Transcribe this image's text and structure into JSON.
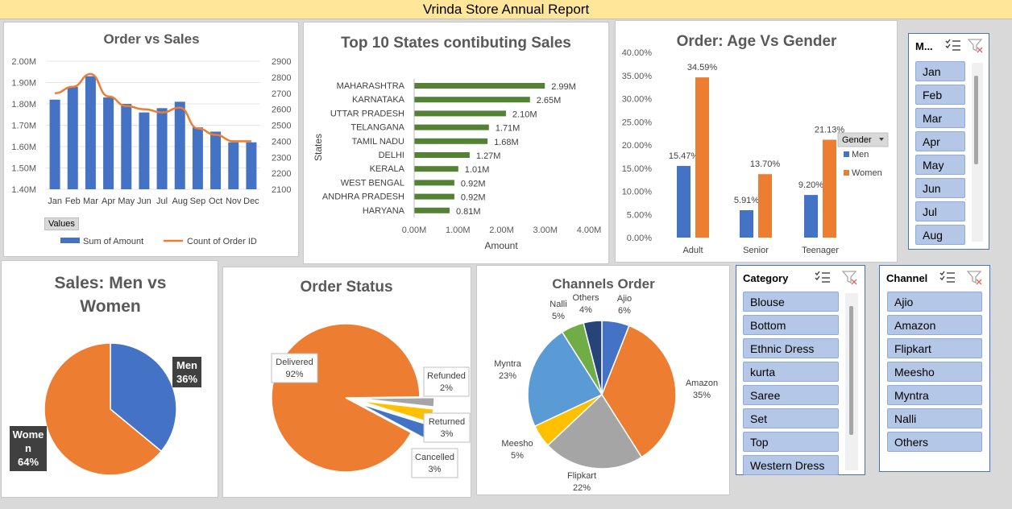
{
  "report_title": "Vrinda Store Annual Report",
  "order_vs_sales": {
    "title": "Order vs Sales",
    "values_button": "Values",
    "legend": [
      "Sum of Amount",
      "Count of Order ID"
    ],
    "chart_data": {
      "type": "bar",
      "categories": [
        "Jan",
        "Feb",
        "Mar",
        "Apr",
        "May",
        "Jun",
        "Jul",
        "Aug",
        "Sep",
        "Oct",
        "Nov",
        "Dec"
      ],
      "series": [
        {
          "name": "Sum of Amount",
          "type": "bar",
          "axis": "left",
          "values": [
            1.82,
            1.88,
            1.93,
            1.83,
            1.8,
            1.76,
            1.78,
            1.81,
            1.69,
            1.67,
            1.62,
            1.62
          ]
        },
        {
          "name": "Count of Order ID",
          "type": "line",
          "axis": "right",
          "values": [
            2700,
            2740,
            2820,
            2680,
            2620,
            2600,
            2580,
            2610,
            2480,
            2440,
            2400,
            2400
          ]
        }
      ],
      "ylim": [
        1.4,
        2.0
      ],
      "y_ticks": [
        "1.40M",
        "1.50M",
        "1.60M",
        "1.70M",
        "1.80M",
        "1.90M",
        "2.00M"
      ],
      "y2lim": [
        2100,
        2900
      ],
      "y2_ticks": [
        "2100",
        "2200",
        "2300",
        "2400",
        "2500",
        "2600",
        "2700",
        "2800",
        "2900"
      ],
      "colors": {
        "bar": "#4472c4",
        "line": "#ed7d31"
      },
      "grid": true,
      "legend_position": "bottom"
    }
  },
  "top_states": {
    "title": "Top 10 States contibuting Sales",
    "chart_data": {
      "type": "bar",
      "orientation": "horizontal",
      "categories": [
        "HARYANA",
        "ANDHRA PRADESH",
        "WEST BENGAL",
        "KERALA",
        "DELHI",
        "TAMIL NADU",
        "TELANGANA",
        "UTTAR PRADESH",
        "KARNATAKA",
        "MAHARASHTRA"
      ],
      "values": [
        0.81,
        0.92,
        0.92,
        1.01,
        1.27,
        1.68,
        1.71,
        2.1,
        2.65,
        2.99
      ],
      "data_labels": [
        "0.81M",
        "0.92M",
        "0.92M",
        "1.01M",
        "1.27M",
        "1.68M",
        "1.71M",
        "2.10M",
        "2.65M",
        "2.99M"
      ],
      "xlabel": "Amount",
      "ylabel": "States",
      "xlim": [
        0,
        4
      ],
      "x_ticks": [
        "0.00M",
        "1.00M",
        "2.00M",
        "3.00M",
        "4.00M"
      ],
      "color": "#548235"
    }
  },
  "age_gender": {
    "title": "Order: Age Vs Gender",
    "legend_title": "Gender",
    "chart_data": {
      "type": "bar",
      "categories": [
        "Adult",
        "Senior",
        "Teenager"
      ],
      "series": [
        {
          "name": "Men",
          "values": [
            15.47,
            5.91,
            9.2
          ],
          "labels": [
            "15.47%",
            "5.91%",
            "9.20%"
          ],
          "color": "#4472c4"
        },
        {
          "name": "Women",
          "values": [
            34.59,
            13.7,
            21.13
          ],
          "labels": [
            "34.59%",
            "13.70%",
            "21.13%"
          ],
          "color": "#ed7d31"
        }
      ],
      "ylim": [
        0,
        40
      ],
      "y_ticks": [
        "0.00%",
        "5.00%",
        "10.00%",
        "15.00%",
        "20.00%",
        "25.00%",
        "30.00%",
        "35.00%",
        "40.00%"
      ],
      "legend_position": "right"
    }
  },
  "month_slicer": {
    "title": "M...",
    "items": [
      "Jan",
      "Feb",
      "Mar",
      "Apr",
      "May",
      "Jun",
      "Jul",
      "Aug"
    ]
  },
  "men_women": {
    "title_line1": "Sales: Men vs",
    "title_line2": "Women",
    "chart_data": {
      "type": "pie",
      "slices": [
        {
          "label": "Men",
          "value": 36,
          "text": "36%",
          "color": "#4472c4"
        },
        {
          "label": "Women",
          "value": 64,
          "text": "64%",
          "color": "#ed7d31"
        }
      ]
    },
    "women_label_line1": "Wome",
    "women_label_line2": "n"
  },
  "order_status": {
    "title": "Order Status",
    "chart_data": {
      "type": "pie",
      "slices": [
        {
          "label": "Delivered",
          "value": 92,
          "text": "92%",
          "color": "#ed7d31"
        },
        {
          "label": "Refunded",
          "value": 2,
          "text": "2%",
          "color": "#a5a5a5"
        },
        {
          "label": "Returned",
          "value": 3,
          "text": "3%",
          "color": "#ffc000"
        },
        {
          "label": "Cancelled",
          "value": 3,
          "text": "3%",
          "color": "#4472c4"
        }
      ]
    }
  },
  "channels": {
    "title": "Channels Order",
    "chart_data": {
      "type": "pie",
      "slices": [
        {
          "label": "Ajio",
          "value": 6,
          "text": "6%",
          "color": "#4472c4"
        },
        {
          "label": "Amazon",
          "value": 35,
          "text": "35%",
          "color": "#ed7d31"
        },
        {
          "label": "Flipkart",
          "value": 22,
          "text": "22%",
          "color": "#a5a5a5"
        },
        {
          "label": "Meesho",
          "value": 5,
          "text": "5%",
          "color": "#ffc000"
        },
        {
          "label": "Myntra",
          "value": 23,
          "text": "23%",
          "color": "#5b9bd5"
        },
        {
          "label": "Nalli",
          "value": 5,
          "text": "5%",
          "color": "#70ad47"
        },
        {
          "label": "Others",
          "value": 4,
          "text": "4%",
          "color": "#264478"
        }
      ]
    }
  },
  "category_slicer": {
    "title": "Category",
    "items": [
      "Blouse",
      "Bottom",
      "Ethnic Dress",
      "kurta",
      "Saree",
      "Set",
      "Top",
      "Western Dress"
    ]
  },
  "channel_slicer": {
    "title": "Channel",
    "items": [
      "Ajio",
      "Amazon",
      "Flipkart",
      "Meesho",
      "Myntra",
      "Nalli",
      "Others"
    ]
  },
  "icons": {
    "multiselect": "multi-select-icon",
    "clear_filter": "clear-filter-icon"
  }
}
